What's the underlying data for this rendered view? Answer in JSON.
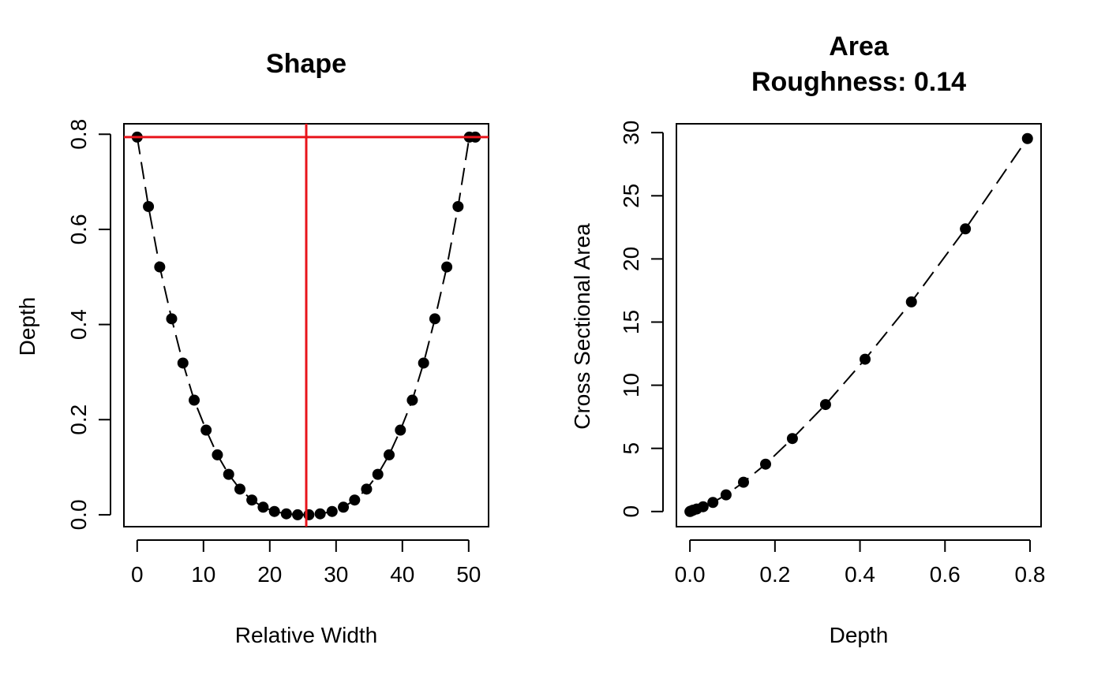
{
  "chart_data": [
    {
      "type": "line",
      "title": "Shape",
      "xlabel": "Relative Width",
      "ylabel": "Depth",
      "xlim": [
        -2,
        53
      ],
      "ylim": [
        -0.025,
        0.822
      ],
      "xticks": [
        0,
        10,
        20,
        30,
        40,
        50
      ],
      "xtick_labels": [
        "0",
        "10",
        "20",
        "30",
        "40",
        "50"
      ],
      "yticks": [
        0.0,
        0.2,
        0.4,
        0.6,
        0.8
      ],
      "ytick_labels": [
        "0.0",
        "0.2",
        "0.4",
        "0.6",
        "0.8"
      ],
      "grid": false,
      "line_style": "dashed",
      "series": [
        {
          "x": [
            0,
            1.7,
            3.4,
            5.2,
            6.9,
            8.6,
            10.4,
            12.1,
            13.8,
            15.5,
            17.3,
            19.0,
            20.7,
            22.5,
            24.2,
            25.9,
            27.6,
            29.4,
            31.1,
            32.8,
            34.6,
            36.3,
            38.0,
            39.7,
            41.5,
            43.2,
            44.9,
            46.7,
            48.4,
            50.1,
            51.0
          ],
          "y": [
            0.794,
            0.648,
            0.521,
            0.412,
            0.319,
            0.241,
            0.178,
            0.126,
            0.085,
            0.054,
            0.031,
            0.016,
            0.007,
            0.002,
            0.0,
            0.0,
            0.002,
            0.007,
            0.016,
            0.031,
            0.054,
            0.085,
            0.126,
            0.178,
            0.241,
            0.319,
            0.412,
            0.521,
            0.648,
            0.794,
            0.794
          ]
        }
      ],
      "reference_lines": {
        "color": "#e8141b",
        "hline_y": 0.794,
        "vline_x": 25.5
      }
    },
    {
      "type": "line",
      "title": "Area\nRoughness: 0.14",
      "title_lines": [
        "Area",
        "Roughness: 0.14"
      ],
      "xlabel": "Depth",
      "ylabel": "Cross Sectional Area",
      "xlim": [
        -0.0318,
        0.826
      ],
      "ylim": [
        -1.2,
        30.7
      ],
      "xticks": [
        0.0,
        0.2,
        0.4,
        0.6,
        0.8
      ],
      "xtick_labels": [
        "0.0",
        "0.2",
        "0.4",
        "0.6",
        "0.8"
      ],
      "yticks": [
        0,
        5,
        10,
        15,
        20,
        25,
        30
      ],
      "ytick_labels": [
        "0",
        "5",
        "10",
        "15",
        "20",
        "25",
        "30"
      ],
      "grid": false,
      "line_style": "dashed",
      "series": [
        {
          "x": [
            0.0,
            0.002,
            0.007,
            0.016,
            0.031,
            0.054,
            0.085,
            0.126,
            0.178,
            0.241,
            0.319,
            0.412,
            0.521,
            0.648,
            0.794
          ],
          "y": [
            0.0,
            0.03,
            0.1,
            0.2,
            0.38,
            0.72,
            1.32,
            2.32,
            3.75,
            5.78,
            8.47,
            12.06,
            16.6,
            22.38,
            29.53
          ]
        }
      ]
    }
  ]
}
